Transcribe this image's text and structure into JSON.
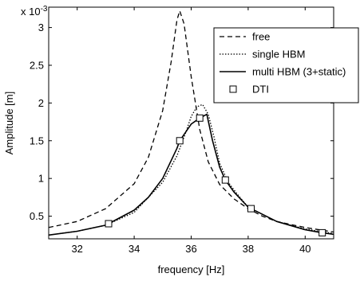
{
  "chart_data": {
    "type": "line",
    "title": "",
    "xlabel": "frequency [Hz]",
    "ylabel": "Amplitude [m]",
    "y_multiplier_label": "x 10",
    "y_multiplier_exponent": "-3",
    "xlim": [
      31,
      41
    ],
    "ylim": [
      0.2,
      3.27
    ],
    "y_unit_scale": 0.001,
    "x_ticks": [
      32,
      34,
      36,
      38,
      40
    ],
    "x_tick_labels": [
      "32",
      "34",
      "36",
      "38",
      "40"
    ],
    "y_ticks": [
      0.5,
      1,
      1.5,
      2,
      2.5,
      3
    ],
    "y_tick_labels": [
      "0.5",
      "1",
      "1.5",
      "2",
      "2.5",
      "3"
    ],
    "grid": false,
    "legend_position": "top-right",
    "series": [
      {
        "name": "free",
        "style": "dashed",
        "color": "#000000",
        "x": [
          31,
          32,
          33,
          34,
          34.5,
          35,
          35.3,
          35.5,
          35.6,
          35.75,
          36,
          36.3,
          36.6,
          37,
          37.5,
          38,
          38.5,
          39,
          40,
          41
        ],
        "y": [
          0.35,
          0.43,
          0.6,
          0.93,
          1.28,
          1.9,
          2.55,
          3.1,
          3.22,
          3.05,
          2.35,
          1.65,
          1.22,
          0.92,
          0.73,
          0.6,
          0.5,
          0.43,
          0.35,
          0.29
        ]
      },
      {
        "name": "single HBM",
        "style": "dotted",
        "color": "#000000",
        "x": [
          31,
          32,
          33,
          34,
          35,
          35.5,
          35.8,
          36,
          36.2,
          36.4,
          36.6,
          36.8,
          37,
          37.3,
          37.6,
          38,
          39,
          40,
          41
        ],
        "y": [
          0.25,
          0.3,
          0.38,
          0.55,
          0.95,
          1.3,
          1.6,
          1.82,
          1.95,
          1.98,
          1.85,
          1.55,
          1.2,
          0.95,
          0.8,
          0.62,
          0.43,
          0.33,
          0.27
        ]
      },
      {
        "name": "multi HBM (3+static)",
        "style": "solid",
        "color": "#000000",
        "x": [
          31,
          32,
          33,
          33.1,
          34,
          34.5,
          35,
          35.5,
          35.6,
          36,
          36.3,
          36.55,
          36.75,
          37,
          37.2,
          37.5,
          38,
          38.1,
          39,
          40,
          40.6,
          41
        ],
        "y": [
          0.25,
          0.3,
          0.38,
          0.4,
          0.58,
          0.75,
          1.0,
          1.4,
          1.5,
          1.72,
          1.8,
          1.85,
          1.5,
          1.15,
          0.98,
          0.82,
          0.62,
          0.6,
          0.43,
          0.32,
          0.28,
          0.26
        ]
      },
      {
        "name": "DTI",
        "style": "markers",
        "marker": "square",
        "color": "#000000",
        "x": [
          33.1,
          35.6,
          36.3,
          37.2,
          38.1,
          40.6
        ],
        "y": [
          0.4,
          1.5,
          1.8,
          0.98,
          0.6,
          0.28
        ]
      }
    ]
  }
}
